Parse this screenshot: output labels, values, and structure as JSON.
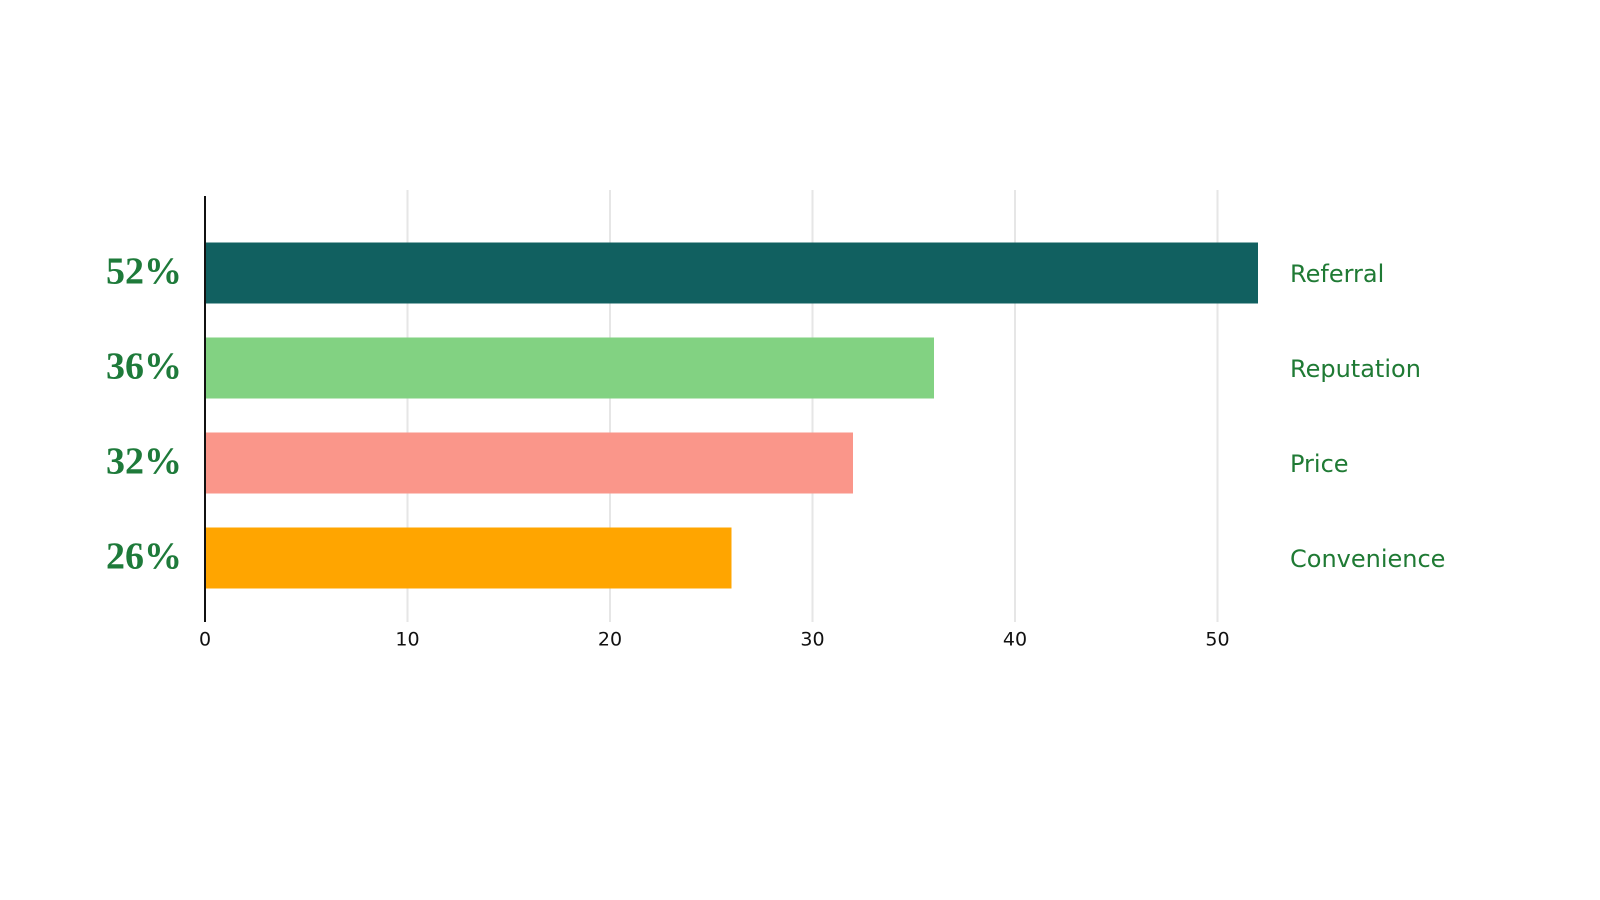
{
  "chart_data": {
    "type": "bar",
    "orientation": "horizontal",
    "categories": [
      "Referral",
      "Reputation",
      "Price",
      "Convenience"
    ],
    "values": [
      52,
      36,
      32,
      26
    ],
    "value_labels": [
      "52%",
      "36%",
      "32%",
      "26%"
    ],
    "colors": [
      "#116060",
      "#82d282",
      "#fa968a",
      "#ffa500"
    ],
    "xlim": [
      0,
      52
    ],
    "xticks": [
      0,
      10,
      20,
      30,
      40,
      50
    ],
    "grid": true
  }
}
